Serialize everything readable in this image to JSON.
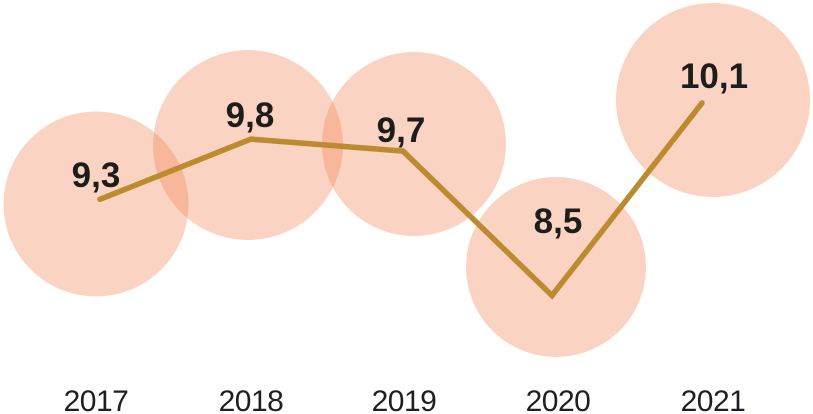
{
  "chart_data": {
    "type": "line",
    "categories": [
      "2017",
      "2018",
      "2019",
      "2020",
      "2021"
    ],
    "values": [
      9.3,
      9.8,
      9.7,
      8.5,
      10.1
    ],
    "display_values": [
      "9,3",
      "9,8",
      "9,7",
      "8,5",
      "10,1"
    ],
    "decimal_separator": ",",
    "title": "",
    "xlabel": "",
    "ylabel": "",
    "ylim": [
      8.5,
      10.1
    ],
    "grid": false,
    "legend": false,
    "colors": {
      "bubble_fill": "#F48250",
      "bubble_opacity": "0.35",
      "line": "#BC8B30",
      "value_text": "#1D1D1B",
      "year_text": "#1D1F24",
      "background": "#FFFFFF"
    }
  }
}
